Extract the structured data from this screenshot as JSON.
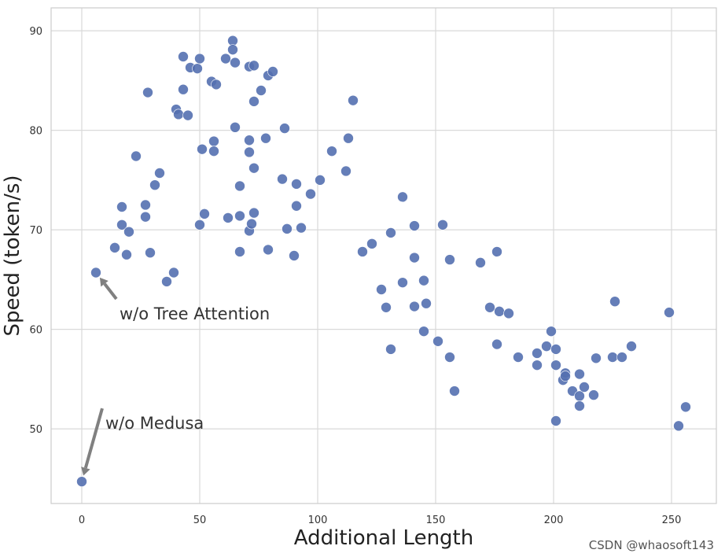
{
  "chart_data": {
    "type": "scatter",
    "xlabel": "Additional Length",
    "ylabel": "Speed (token/s)",
    "xlim": [
      -13,
      269
    ],
    "ylim": [
      42.5,
      92.3
    ],
    "xticks": [
      0,
      50,
      100,
      150,
      200,
      250
    ],
    "yticks": [
      50,
      60,
      70,
      80,
      90
    ],
    "grid": true,
    "marker_color": "#5470b0",
    "annotation_color": "#808080",
    "annotations": [
      {
        "text": "w/o Tree Attention",
        "point": [
          6,
          65.7
        ],
        "text_pos": [
          16,
          61
        ]
      },
      {
        "text": "w/o Medusa",
        "point": [
          0,
          44.7
        ],
        "text_pos": [
          10,
          50
        ]
      }
    ],
    "points": [
      [
        0,
        44.7
      ],
      [
        6,
        65.7
      ],
      [
        14,
        68.2
      ],
      [
        17,
        72.3
      ],
      [
        17,
        70.5
      ],
      [
        19,
        67.5
      ],
      [
        20,
        69.8
      ],
      [
        23,
        77.4
      ],
      [
        27,
        72.5
      ],
      [
        27,
        71.3
      ],
      [
        28,
        83.8
      ],
      [
        29,
        67.7
      ],
      [
        31,
        74.5
      ],
      [
        33,
        75.7
      ],
      [
        36,
        64.8
      ],
      [
        39,
        65.7
      ],
      [
        40,
        82.1
      ],
      [
        41,
        81.6
      ],
      [
        43,
        87.4
      ],
      [
        43,
        84.1
      ],
      [
        45,
        81.5
      ],
      [
        46,
        86.3
      ],
      [
        49,
        86.2
      ],
      [
        50,
        87.2
      ],
      [
        50,
        70.5
      ],
      [
        51,
        78.1
      ],
      [
        52,
        71.6
      ],
      [
        55,
        84.9
      ],
      [
        56,
        78.9
      ],
      [
        56,
        77.9
      ],
      [
        57,
        84.6
      ],
      [
        61,
        87.2
      ],
      [
        62,
        71.2
      ],
      [
        64,
        89.0
      ],
      [
        64,
        88.1
      ],
      [
        65,
        86.8
      ],
      [
        65,
        80.3
      ],
      [
        67,
        74.4
      ],
      [
        67,
        71.4
      ],
      [
        67,
        67.8
      ],
      [
        71,
        86.4
      ],
      [
        71,
        79.0
      ],
      [
        71,
        77.8
      ],
      [
        71,
        69.9
      ],
      [
        72,
        70.6
      ],
      [
        73,
        86.5
      ],
      [
        73,
        82.9
      ],
      [
        73,
        76.2
      ],
      [
        73,
        71.7
      ],
      [
        76,
        84.0
      ],
      [
        78,
        79.2
      ],
      [
        79,
        85.5
      ],
      [
        79,
        68.0
      ],
      [
        81,
        85.9
      ],
      [
        85,
        75.1
      ],
      [
        86,
        80.2
      ],
      [
        87,
        70.1
      ],
      [
        90,
        67.4
      ],
      [
        91,
        74.6
      ],
      [
        91,
        72.4
      ],
      [
        93,
        70.2
      ],
      [
        97,
        73.6
      ],
      [
        101,
        75.0
      ],
      [
        106,
        77.9
      ],
      [
        112,
        75.9
      ],
      [
        113,
        79.2
      ],
      [
        115,
        83.0
      ],
      [
        119,
        67.8
      ],
      [
        123,
        68.6
      ],
      [
        127,
        64.0
      ],
      [
        129,
        62.2
      ],
      [
        131,
        69.7
      ],
      [
        131,
        58.0
      ],
      [
        136,
        73.3
      ],
      [
        136,
        64.7
      ],
      [
        141,
        70.4
      ],
      [
        141,
        67.2
      ],
      [
        141,
        62.3
      ],
      [
        145,
        64.9
      ],
      [
        145,
        59.8
      ],
      [
        146,
        62.6
      ],
      [
        151,
        58.8
      ],
      [
        153,
        70.5
      ],
      [
        156,
        67.0
      ],
      [
        156,
        57.2
      ],
      [
        158,
        53.8
      ],
      [
        169,
        66.7
      ],
      [
        173,
        62.2
      ],
      [
        176,
        67.8
      ],
      [
        176,
        58.5
      ],
      [
        177,
        61.8
      ],
      [
        181,
        61.6
      ],
      [
        185,
        57.2
      ],
      [
        193,
        57.6
      ],
      [
        193,
        56.4
      ],
      [
        197,
        58.3
      ],
      [
        199,
        59.8
      ],
      [
        201,
        58.0
      ],
      [
        201,
        56.4
      ],
      [
        201,
        50.8
      ],
      [
        204,
        54.9
      ],
      [
        205,
        55.6
      ],
      [
        205,
        55.3
      ],
      [
        208,
        53.8
      ],
      [
        211,
        55.5
      ],
      [
        211,
        53.3
      ],
      [
        211,
        52.3
      ],
      [
        213,
        54.2
      ],
      [
        217,
        53.4
      ],
      [
        218,
        57.1
      ],
      [
        225,
        57.2
      ],
      [
        226,
        62.8
      ],
      [
        229,
        57.2
      ],
      [
        233,
        58.3
      ],
      [
        249,
        61.7
      ],
      [
        253,
        50.3
      ],
      [
        256,
        52.2
      ]
    ]
  },
  "watermark": "CSDN @whaosoft143"
}
